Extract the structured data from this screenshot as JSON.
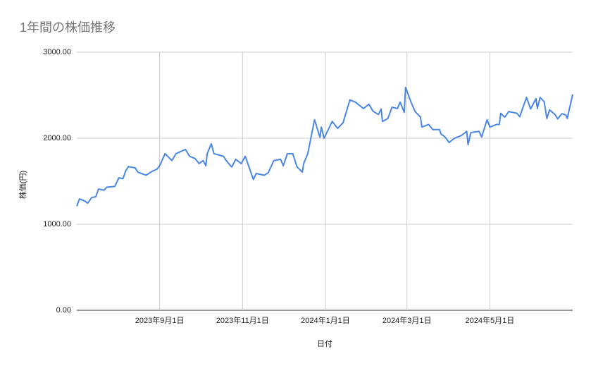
{
  "chart_data": {
    "type": "line",
    "title": "1年間の株価推移",
    "x_label": "日付",
    "y_label": "株価(円)",
    "x": [
      "2023-07-02",
      "2023-07-04",
      "2023-07-08",
      "2023-07-10",
      "2023-07-13",
      "2023-07-16",
      "2023-07-18",
      "2023-07-22",
      "2023-07-24",
      "2023-07-30",
      "2023-08-02",
      "2023-08-05",
      "2023-08-07",
      "2023-08-09",
      "2023-08-14",
      "2023-08-16",
      "2023-08-22",
      "2023-08-27",
      "2023-08-30",
      "2023-09-01",
      "2023-09-05",
      "2023-09-10",
      "2023-09-13",
      "2023-09-20",
      "2023-09-23",
      "2023-09-27",
      "2023-09-30",
      "2023-10-03",
      "2023-10-05",
      "2023-10-06",
      "2023-10-09",
      "2023-10-11",
      "2023-10-18",
      "2023-10-20",
      "2023-10-24",
      "2023-10-27",
      "2023-10-31",
      "2023-11-03",
      "2023-11-09",
      "2023-11-11",
      "2023-11-17",
      "2023-11-20",
      "2023-11-24",
      "2023-11-29",
      "2023-12-01",
      "2023-12-04",
      "2023-12-08",
      "2023-12-11",
      "2023-12-15",
      "2023-12-16",
      "2023-12-19",
      "2023-12-24",
      "2023-12-28",
      "2023-12-29",
      "2023-12-31",
      "2024-01-06",
      "2024-01-10",
      "2024-01-14",
      "2024-01-19",
      "2024-01-23",
      "2024-01-29",
      "2024-02-02",
      "2024-02-05",
      "2024-02-09",
      "2024-02-11",
      "2024-02-12",
      "2024-02-16",
      "2024-02-19",
      "2024-02-23",
      "2024-02-25",
      "2024-02-27",
      "2024-02-28",
      "2024-02-29",
      "2024-03-04",
      "2024-03-07",
      "2024-03-11",
      "2024-03-12",
      "2024-03-17",
      "2024-03-20",
      "2024-03-25",
      "2024-03-26",
      "2024-03-29",
      "2024-04-01",
      "2024-04-05",
      "2024-04-10",
      "2024-04-14",
      "2024-04-15",
      "2024-04-17",
      "2024-04-23",
      "2024-04-25",
      "2024-04-29",
      "2024-05-01",
      "2024-05-06",
      "2024-05-08",
      "2024-05-09",
      "2024-05-12",
      "2024-05-15",
      "2024-05-21",
      "2024-05-23",
      "2024-05-28",
      "2024-05-31",
      "2024-06-04",
      "2024-06-05",
      "2024-06-07",
      "2024-06-10",
      "2024-06-12",
      "2024-06-14",
      "2024-06-18",
      "2024-06-20",
      "2024-06-23",
      "2024-06-26",
      "2024-06-27",
      "2024-07-01"
    ],
    "series": [
      {
        "name": "株価",
        "color": "#4a86e8",
        "values": [
          1210,
          1295,
          1270,
          1245,
          1310,
          1320,
          1410,
          1395,
          1430,
          1440,
          1540,
          1530,
          1620,
          1670,
          1655,
          1605,
          1570,
          1620,
          1640,
          1680,
          1820,
          1740,
          1820,
          1870,
          1790,
          1765,
          1705,
          1740,
          1680,
          1820,
          1935,
          1820,
          1790,
          1740,
          1665,
          1755,
          1705,
          1790,
          1520,
          1590,
          1570,
          1600,
          1740,
          1755,
          1680,
          1820,
          1820,
          1670,
          1605,
          1705,
          1820,
          2215,
          2010,
          2130,
          2000,
          2195,
          2115,
          2180,
          2445,
          2420,
          2345,
          2395,
          2315,
          2275,
          2340,
          2195,
          2230,
          2360,
          2345,
          2420,
          2340,
          2300,
          2590,
          2420,
          2310,
          2245,
          2130,
          2160,
          2100,
          2100,
          2050,
          2015,
          1950,
          2000,
          2030,
          2080,
          1925,
          2065,
          2080,
          2015,
          2215,
          2130,
          2160,
          2160,
          2290,
          2245,
          2310,
          2290,
          2250,
          2475,
          2340,
          2460,
          2345,
          2475,
          2425,
          2230,
          2330,
          2275,
          2225,
          2285,
          2270,
          2230,
          2510
        ]
      }
    ],
    "xlim": [
      "2023-07-02",
      "2024-07-01"
    ],
    "xticks": [
      {
        "value": "2023-09-01",
        "label": "2023年9月1日"
      },
      {
        "value": "2023-11-01",
        "label": "2023年11月1日"
      },
      {
        "value": "2024-01-01",
        "label": "2024年1月1日"
      },
      {
        "value": "2024-03-01",
        "label": "2024年3月1日"
      },
      {
        "value": "2024-05-01",
        "label": "2024年5月1日"
      }
    ],
    "ylim": [
      0,
      3000
    ],
    "yticks": [
      {
        "value": 0,
        "label": "0.00"
      },
      {
        "value": 1000,
        "label": "1000.00"
      },
      {
        "value": 2000,
        "label": "2000.00"
      },
      {
        "value": 3000,
        "label": "3000.00"
      }
    ],
    "grid": true
  }
}
